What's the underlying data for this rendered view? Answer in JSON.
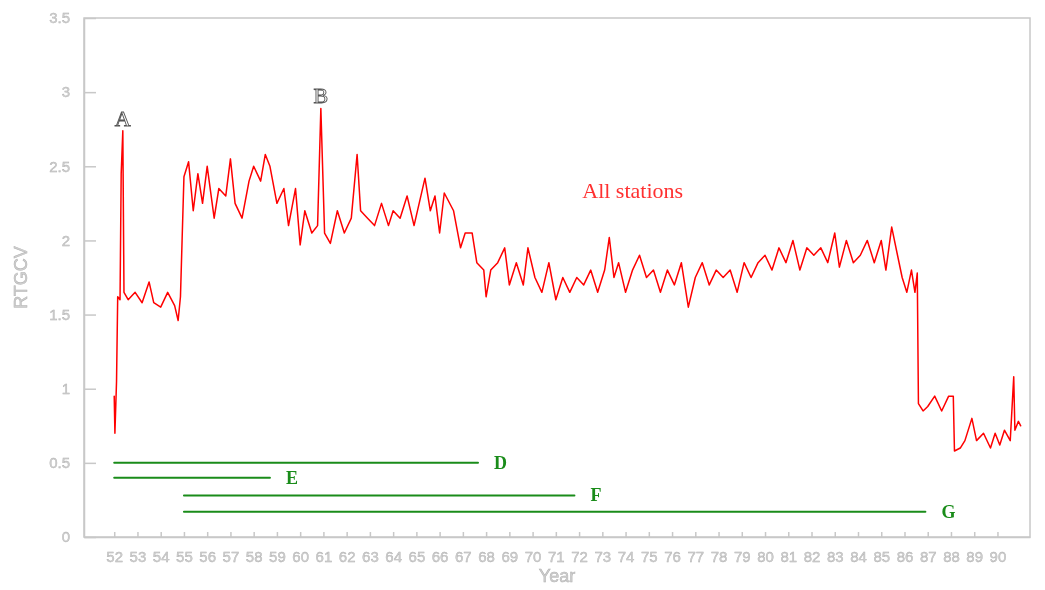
{
  "chart_data": {
    "type": "line",
    "xlabel": "Year",
    "ylabel": "RTGCV",
    "xlim": [
      50.7,
      91.4
    ],
    "ylim": [
      0,
      3.5
    ],
    "xticks": [
      52,
      53,
      54,
      55,
      56,
      57,
      58,
      59,
      60,
      61,
      62,
      63,
      64,
      65,
      66,
      67,
      68,
      69,
      70,
      71,
      72,
      73,
      74,
      75,
      76,
      77,
      78,
      79,
      80,
      81,
      82,
      83,
      84,
      85,
      86,
      87,
      88,
      89,
      90
    ],
    "yticks": [
      0,
      0.5,
      1,
      1.5,
      2,
      2.5,
      3,
      3.5
    ],
    "grid": false,
    "legend": false,
    "marker": "none",
    "line_style": "solid",
    "annotations": [
      {
        "text": "A",
        "x": 52.37,
        "y": 2.74
      },
      {
        "text": "B",
        "x": 60.89,
        "y": 2.89
      },
      "All stations"
    ],
    "series": [
      {
        "color": "#ff0000",
        "x": [
          52.0,
          52.03,
          52.1,
          52.15,
          52.25,
          52.3,
          52.37,
          52.42,
          52.6,
          52.9,
          53.2,
          53.5,
          53.7,
          54.0,
          54.3,
          54.6,
          54.75,
          54.85,
          54.92,
          55.0,
          55.2,
          55.4,
          55.6,
          55.8,
          56.0,
          56.3,
          56.5,
          56.8,
          57.0,
          57.2,
          57.5,
          57.8,
          58.0,
          58.3,
          58.5,
          58.7,
          59.0,
          59.3,
          59.5,
          59.8,
          60.0,
          60.2,
          60.5,
          60.75,
          60.89,
          61.05,
          61.3,
          61.6,
          61.9,
          62.2,
          62.45,
          62.6,
          62.9,
          63.2,
          63.5,
          63.8,
          64.0,
          64.3,
          64.6,
          64.9,
          65.37,
          65.6,
          65.8,
          66.0,
          66.2,
          66.6,
          66.9,
          67.1,
          67.4,
          67.6,
          67.9,
          68.0,
          68.2,
          68.5,
          68.8,
          69.0,
          69.3,
          69.6,
          69.8,
          70.1,
          70.4,
          70.7,
          71.0,
          71.3,
          71.6,
          71.9,
          72.2,
          72.5,
          72.8,
          73.1,
          73.3,
          73.5,
          73.7,
          74.0,
          74.3,
          74.6,
          74.9,
          75.2,
          75.5,
          75.8,
          76.1,
          76.4,
          76.7,
          77.0,
          77.3,
          77.6,
          77.9,
          78.2,
          78.5,
          78.8,
          79.1,
          79.4,
          79.7,
          80.0,
          80.3,
          80.6,
          80.9,
          81.2,
          81.5,
          81.8,
          82.1,
          82.4,
          82.7,
          83.0,
          83.2,
          83.5,
          83.8,
          84.1,
          84.4,
          84.7,
          85.0,
          85.2,
          85.45,
          85.7,
          85.9,
          86.1,
          86.3,
          86.45,
          86.55,
          86.6,
          86.8,
          87.0,
          87.3,
          87.6,
          87.9,
          88.1,
          88.15,
          88.4,
          88.6,
          88.9,
          89.1,
          89.4,
          89.7,
          89.9,
          90.1,
          90.3,
          90.55,
          90.7,
          90.75,
          90.9,
          91.0
        ],
        "values": [
          0.95,
          0.7,
          1.05,
          1.62,
          1.6,
          2.45,
          2.74,
          1.65,
          1.6,
          1.65,
          1.58,
          1.72,
          1.58,
          1.55,
          1.65,
          1.56,
          1.46,
          1.62,
          2.0,
          2.43,
          2.53,
          2.2,
          2.45,
          2.25,
          2.5,
          2.15,
          2.35,
          2.3,
          2.55,
          2.25,
          2.15,
          2.4,
          2.5,
          2.4,
          2.58,
          2.5,
          2.25,
          2.35,
          2.1,
          2.35,
          1.97,
          2.2,
          2.05,
          2.1,
          2.89,
          2.05,
          1.98,
          2.2,
          2.05,
          2.15,
          2.58,
          2.2,
          2.15,
          2.1,
          2.25,
          2.1,
          2.2,
          2.15,
          2.3,
          2.1,
          2.42,
          2.2,
          2.3,
          2.05,
          2.32,
          2.2,
          1.95,
          2.05,
          2.05,
          1.85,
          1.8,
          1.62,
          1.8,
          1.85,
          1.95,
          1.7,
          1.85,
          1.7,
          1.95,
          1.75,
          1.65,
          1.85,
          1.6,
          1.75,
          1.65,
          1.75,
          1.7,
          1.8,
          1.65,
          1.8,
          2.02,
          1.75,
          1.85,
          1.65,
          1.8,
          1.9,
          1.75,
          1.8,
          1.65,
          1.8,
          1.7,
          1.85,
          1.55,
          1.75,
          1.85,
          1.7,
          1.8,
          1.75,
          1.8,
          1.65,
          1.85,
          1.75,
          1.85,
          1.9,
          1.8,
          1.95,
          1.85,
          2.0,
          1.8,
          1.95,
          1.9,
          1.95,
          1.85,
          2.05,
          1.82,
          2.0,
          1.85,
          1.9,
          2.0,
          1.85,
          2.0,
          1.8,
          2.09,
          1.9,
          1.75,
          1.65,
          1.8,
          1.65,
          1.78,
          0.9,
          0.85,
          0.88,
          0.95,
          0.85,
          0.95,
          0.95,
          0.58,
          0.6,
          0.65,
          0.8,
          0.65,
          0.7,
          0.6,
          0.7,
          0.62,
          0.72,
          0.65,
          1.08,
          0.72,
          0.78,
          0.75
        ]
      },
      {
        "type": "line",
        "name": "D",
        "color": "#1a8c1a",
        "x": [
          52,
          67.65
        ],
        "values": [
          0.5,
          0.5
        ]
      },
      {
        "type": "line",
        "name": "E",
        "color": "#1a8c1a",
        "x": [
          52,
          58.7
        ],
        "values": [
          0.4,
          0.4
        ]
      },
      {
        "type": "line",
        "name": "F",
        "color": "#1a8c1a",
        "x": [
          55,
          71.8
        ],
        "values": [
          0.28,
          0.28
        ]
      },
      {
        "type": "line",
        "name": "G",
        "color": "#1a8c1a",
        "x": [
          55,
          86.9
        ],
        "values": [
          0.17,
          0.17
        ]
      }
    ]
  }
}
